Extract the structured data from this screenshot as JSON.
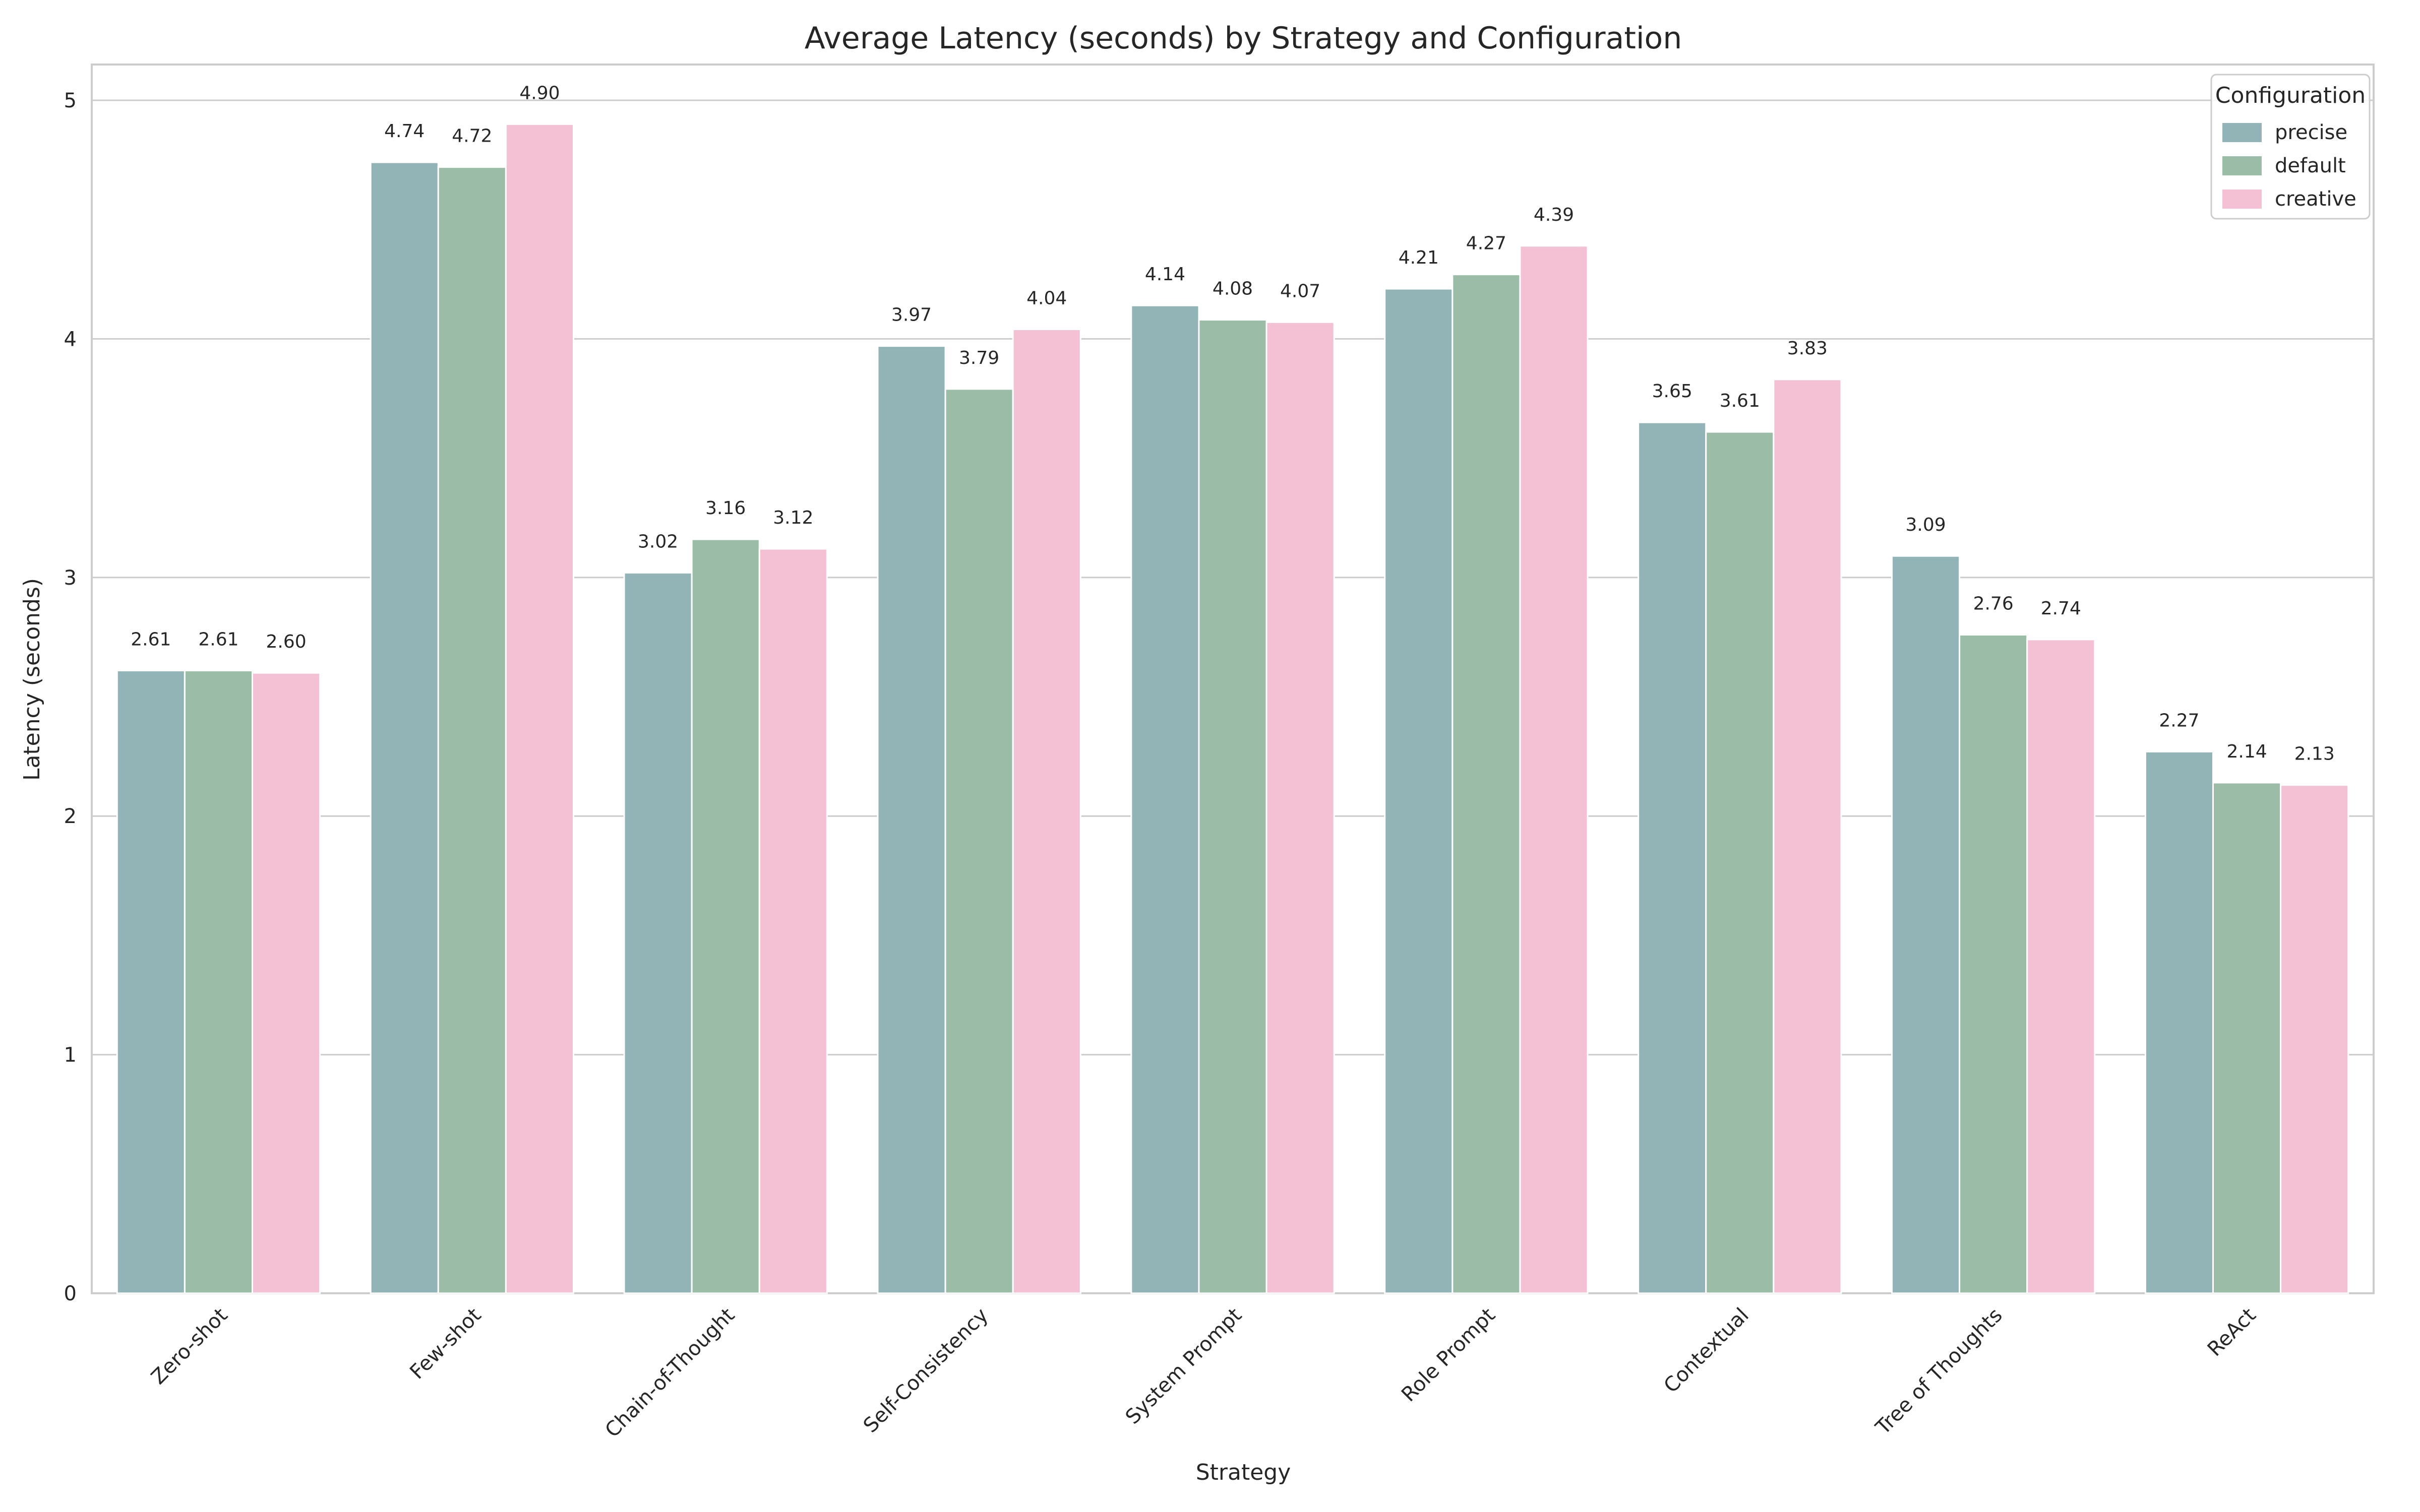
{
  "chart_data": {
    "type": "bar",
    "title": "Average Latency (seconds) by Strategy and Configuration",
    "xlabel": "Strategy",
    "ylabel": "Latency (seconds)",
    "ylim": [
      0,
      5.15
    ],
    "yticks": [
      0,
      1,
      2,
      3,
      4,
      5
    ],
    "grid": "horizontal",
    "legend_title": "Configuration",
    "legend_position": "top-right",
    "categories": [
      "Zero-shot",
      "Few-shot",
      "Chain-of-Thought",
      "Self-Consistency",
      "System Prompt",
      "Role Prompt",
      "Contextual",
      "Tree of Thoughts",
      "ReAct"
    ],
    "series": [
      {
        "name": "precise",
        "color": "#92b4b7",
        "values": [
          2.61,
          4.74,
          3.02,
          3.97,
          4.14,
          4.21,
          3.65,
          3.09,
          2.27
        ]
      },
      {
        "name": "default",
        "color": "#9bbda7",
        "values": [
          2.61,
          4.72,
          3.16,
          3.79,
          4.08,
          4.27,
          3.61,
          2.76,
          2.14
        ]
      },
      {
        "name": "creative",
        "color": "#f3c0d4",
        "values": [
          2.6,
          4.9,
          3.12,
          4.04,
          4.07,
          4.39,
          3.83,
          2.74,
          2.13
        ]
      }
    ],
    "value_labels": [
      [
        "2.61",
        "4.74",
        "3.02",
        "3.97",
        "4.14",
        "4.21",
        "3.65",
        "3.09",
        "2.27"
      ],
      [
        "2.61",
        "4.72",
        "3.16",
        "3.79",
        "4.08",
        "4.27",
        "3.61",
        "2.76",
        "2.14"
      ],
      [
        "2.60",
        "4.90",
        "3.12",
        "4.04",
        "4.07",
        "4.39",
        "3.83",
        "2.74",
        "2.13"
      ]
    ]
  }
}
